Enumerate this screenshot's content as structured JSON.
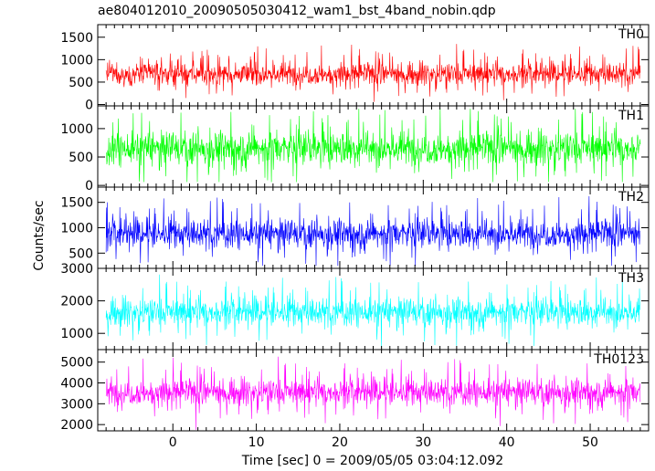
{
  "chart_data": {
    "type": "line",
    "title": "ae804012010_20090505030412_wam1_bst_4band_nobin.qdp",
    "xlabel": "Time [sec] 0 = 2009/05/05 03:04:12.092",
    "ylabel": "Counts/sec",
    "xlim": [
      -9,
      57
    ],
    "x_ticks": [
      0,
      10,
      20,
      30,
      40,
      50
    ],
    "x_range_data": [
      -8,
      56
    ],
    "panels": [
      {
        "name": "TH0",
        "color": "#ff0000",
        "ylim": [
          -30,
          1780
        ],
        "y_ticks": [
          0,
          500,
          1000,
          1500
        ],
        "mean": 680,
        "spread": 220,
        "min": 60,
        "max": 1760
      },
      {
        "name": "TH1",
        "color": "#00ff00",
        "ylim": [
          -30,
          1400
        ],
        "y_ticks": [
          0,
          500,
          1000
        ],
        "mean": 650,
        "spread": 260,
        "min": 60,
        "max": 1350
      },
      {
        "name": "TH2",
        "color": "#0000ff",
        "ylim": [
          200,
          1800
        ],
        "y_ticks": [
          500,
          1000,
          1500
        ],
        "mean": 880,
        "spread": 250,
        "min": 250,
        "max": 1780
      },
      {
        "name": "TH3",
        "color": "#00ffff",
        "ylim": [
          500,
          3000
        ],
        "y_ticks": [
          1000,
          2000,
          3000
        ],
        "mean": 1650,
        "spread": 380,
        "min": 550,
        "max": 2950
      },
      {
        "name": "TH0123",
        "color": "#ff00ff",
        "ylim": [
          1700,
          5600
        ],
        "y_ticks": [
          2000,
          3000,
          4000,
          5000
        ],
        "mean": 3550,
        "spread": 560,
        "min": 1750,
        "max": 5550
      }
    ]
  }
}
